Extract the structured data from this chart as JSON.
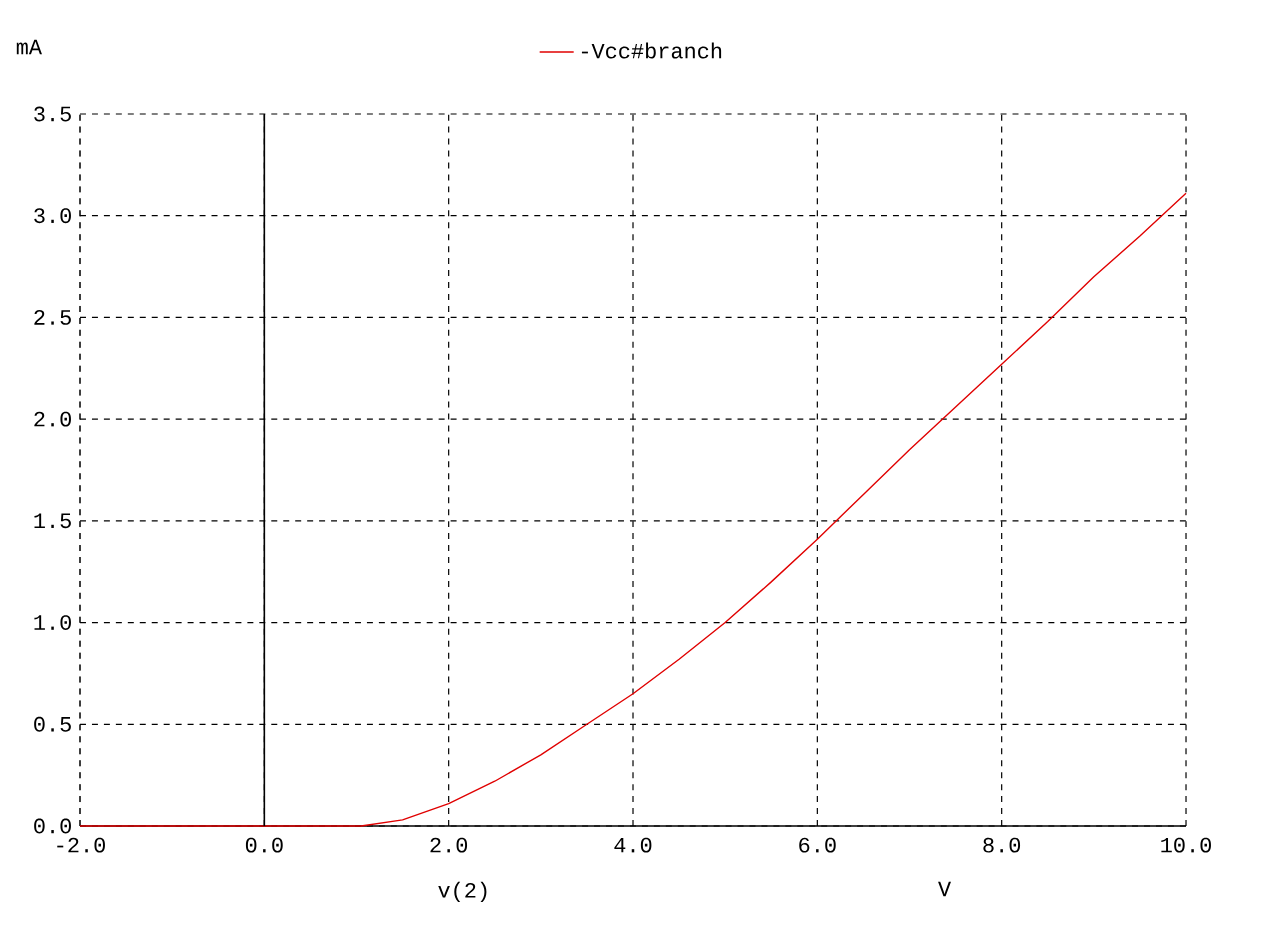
{
  "chart_data": {
    "type": "line",
    "xlabel": "v(2)",
    "ylabel": "mA",
    "annotations": [
      "V"
    ],
    "x": [
      -2,
      1.05,
      1.5,
      2,
      2.5,
      3,
      3.5,
      4,
      4.5,
      5,
      5.5,
      6,
      6.5,
      7,
      7.5,
      8,
      8.5,
      9,
      9.5,
      10
    ],
    "series": [
      {
        "name": "-Vcc#branch",
        "color": "#e00000",
        "values": [
          0,
          0,
          0.03,
          0.11,
          0.22,
          0.35,
          0.5,
          0.65,
          0.82,
          1.0,
          1.2,
          1.41,
          1.63,
          1.85,
          2.06,
          2.27,
          2.48,
          2.7,
          2.9,
          3.11
        ]
      }
    ],
    "xlim": [
      -2,
      10
    ],
    "ylim": [
      0,
      3.5
    ],
    "xticks": [
      {
        "value": -2,
        "label": "-2.0"
      },
      {
        "value": 0,
        "label": "0.0"
      },
      {
        "value": 2,
        "label": "2.0"
      },
      {
        "value": 4,
        "label": "4.0"
      },
      {
        "value": 6,
        "label": "6.0"
      },
      {
        "value": 8,
        "label": "8.0"
      },
      {
        "value": 10,
        "label": "10.0"
      }
    ],
    "yticks": [
      {
        "value": 0,
        "label": "0.0"
      },
      {
        "value": 0.5,
        "label": "0.5"
      },
      {
        "value": 1,
        "label": "1.0"
      },
      {
        "value": 1.5,
        "label": "1.5"
      },
      {
        "value": 2,
        "label": "2.0"
      },
      {
        "value": 2.5,
        "label": "2.5"
      },
      {
        "value": 3,
        "label": "3.0"
      },
      {
        "value": 3.5,
        "label": "3.5"
      }
    ],
    "grid": true,
    "legend": "top",
    "line_style": "solid",
    "ref_lines": [
      {
        "axis": "x",
        "value": 0,
        "color": "#000000",
        "line_style": "solid"
      }
    ]
  }
}
